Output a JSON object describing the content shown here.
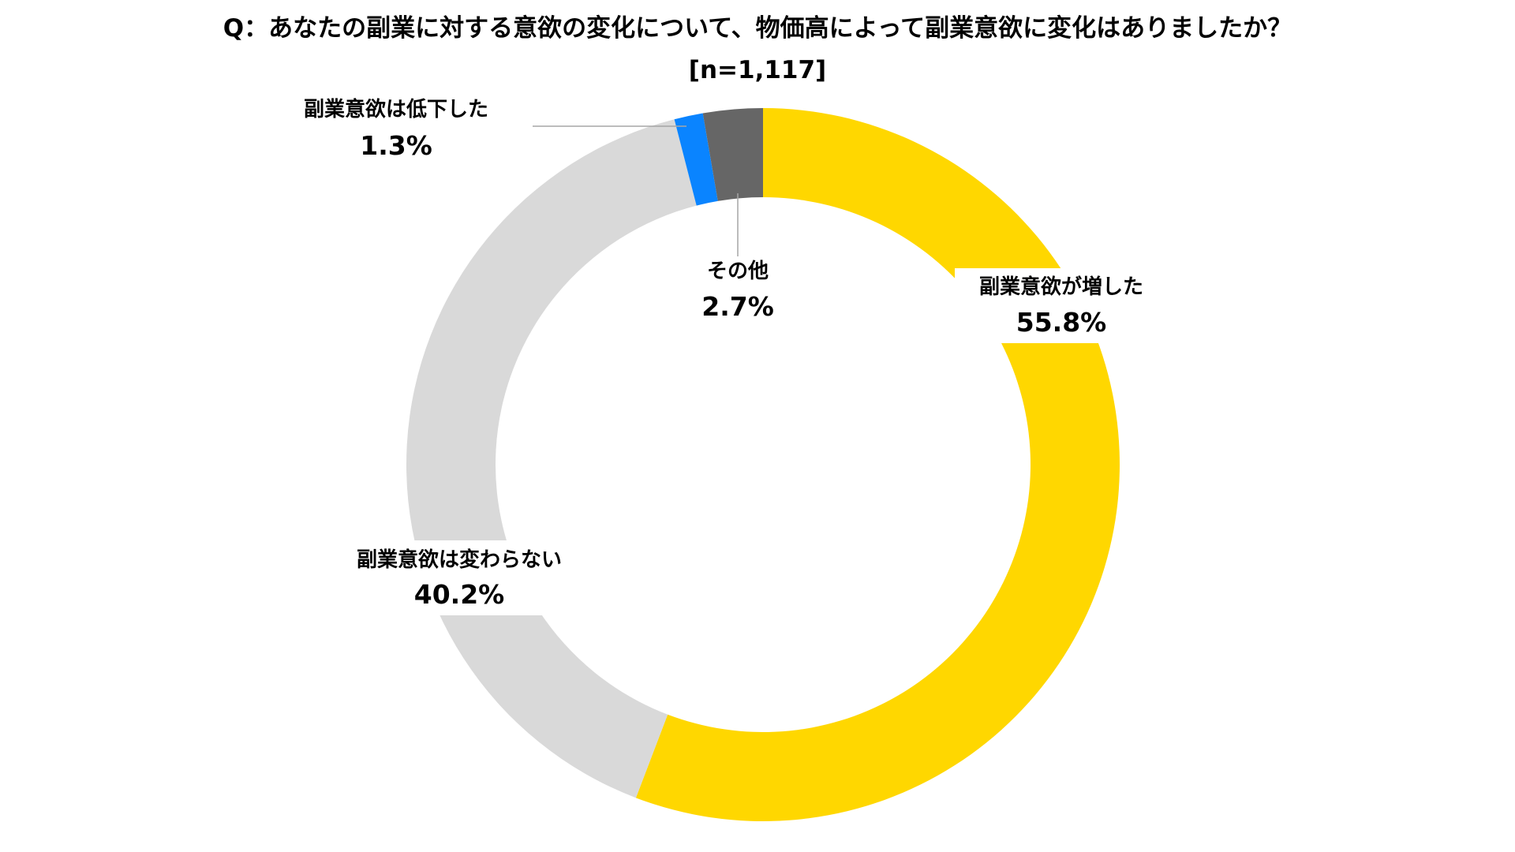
{
  "chart_data": {
    "type": "pie",
    "title": "Q：あなたの副業に対する意欲の変化について、物価高によって副業意欲に変化はありましたか？",
    "subtitle": "[n=1,117]",
    "slices": [
      {
        "label": "副業意欲が増した",
        "value": 55.8,
        "value_label": "55.8%",
        "color": "#FFD700"
      },
      {
        "label": "副業意欲は変わらない",
        "value": 40.2,
        "value_label": "40.2%",
        "color": "#D9D9D9"
      },
      {
        "label": "副業意欲は低下した",
        "value": 1.3,
        "value_label": "1.3%",
        "color": "#0A84FF"
      },
      {
        "label": "その他",
        "value": 2.7,
        "value_label": "2.7%",
        "color": "#666666"
      }
    ],
    "donut": true,
    "start": "top",
    "direction": "clockwise",
    "legend": "none"
  }
}
